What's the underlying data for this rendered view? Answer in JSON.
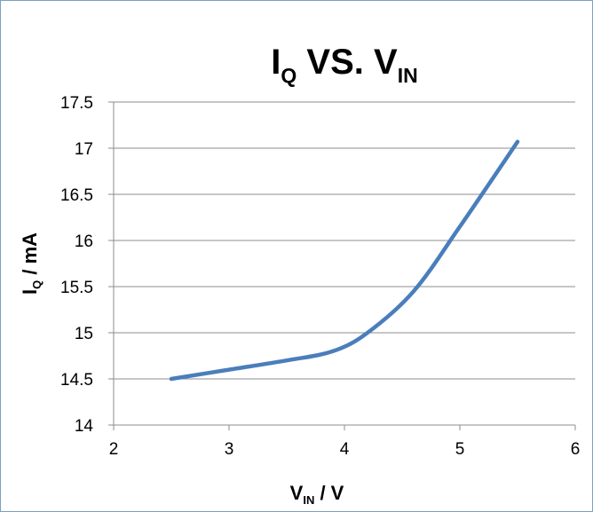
{
  "chart_data": {
    "type": "line",
    "title": {
      "main": "I",
      "main_sub": "Q",
      "mid": " VS. V",
      "mid_sub": "IN"
    },
    "xlabel": {
      "main": "V",
      "sub": "IN",
      "suffix": " / V"
    },
    "ylabel": {
      "main": "I",
      "sub": "Q",
      "suffix": " / mA"
    },
    "xlim": [
      2,
      6
    ],
    "ylim": [
      14,
      17.5
    ],
    "x_ticks": [
      "2",
      "3",
      "4",
      "5",
      "6"
    ],
    "y_ticks": [
      "14",
      "14.5",
      "15",
      "15.5",
      "16",
      "16.5",
      "17",
      "17.5"
    ],
    "grid": "horizontal",
    "legend": "none",
    "series": [
      {
        "color": "#4a7ebb",
        "x": [
          2.5,
          3.0,
          3.5,
          3.9,
          4.2,
          4.6,
          5.0,
          5.5
        ],
        "y": [
          14.5,
          14.6,
          14.7,
          14.8,
          15.0,
          15.45,
          16.15,
          17.07
        ]
      }
    ]
  }
}
